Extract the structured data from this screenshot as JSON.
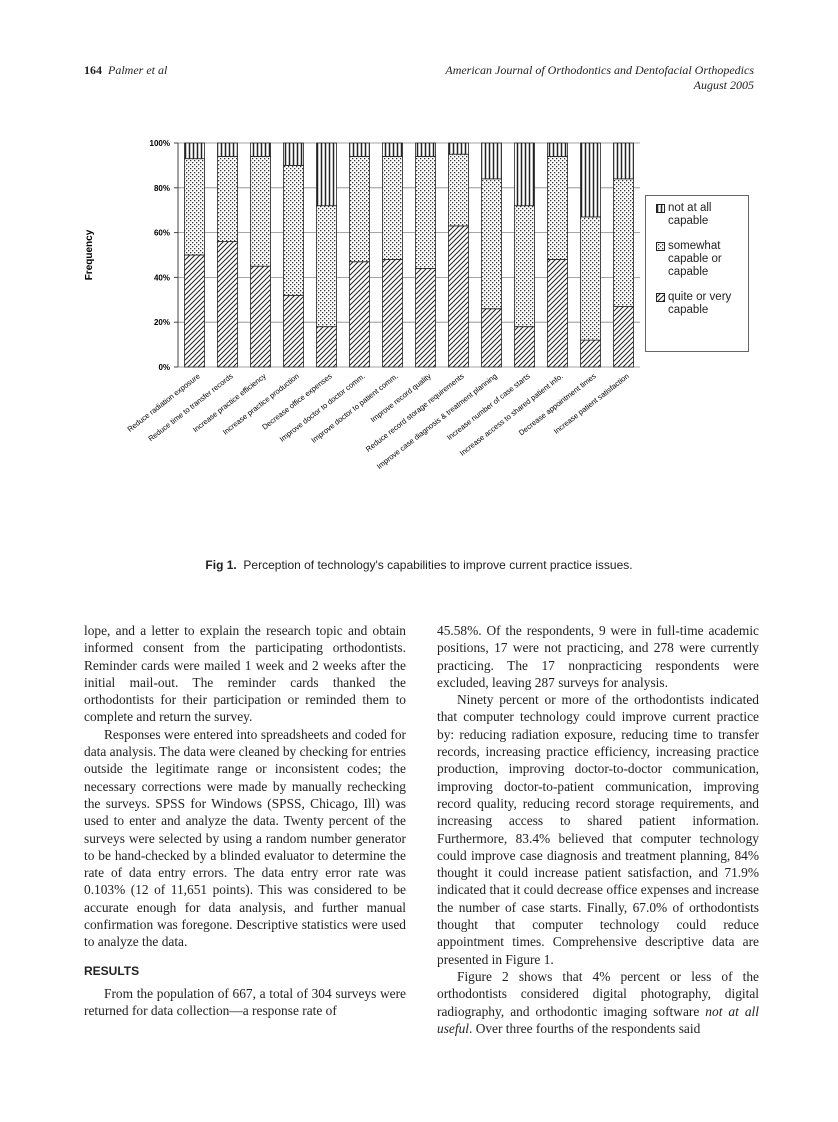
{
  "header": {
    "page_number": "164",
    "authors": "Palmer et al",
    "journal": "American Journal of Orthodontics and Dentofacial Orthopedics",
    "date": "August 2005"
  },
  "chart_data": {
    "type": "stacked-bar",
    "ylabel": "Frequency",
    "categories": [
      "Reduce radiation exposure",
      "Reduce time to transfer records",
      "Increase practice efficiency",
      "Increase practice production",
      "Decrease office expenses",
      "Improve doctor to doctor comm.",
      "Improve doctor to patient comm.",
      "Improve record quality",
      "Reduce record storage requirements",
      "Improve case diagnosis & treatment planning",
      "Increase number of case starts",
      "Increase access to shared patient info.",
      "Decrease appointment times",
      "Increase patient satisfaction"
    ],
    "series": [
      {
        "name": "quite or very capable",
        "values": [
          50,
          56,
          45,
          32,
          18,
          47,
          48,
          44,
          63,
          26,
          18,
          48,
          12,
          27
        ]
      },
      {
        "name": "somewhat capable or capable",
        "values": [
          43,
          38,
          49,
          58,
          54,
          47,
          46,
          50,
          32,
          58,
          54,
          46,
          55,
          57
        ]
      },
      {
        "name": "not at all capable",
        "values": [
          7,
          6,
          6,
          10,
          28,
          6,
          6,
          6,
          5,
          16,
          28,
          6,
          33,
          16
        ]
      }
    ],
    "ylim": [
      0,
      100
    ],
    "yticks": [
      {
        "value": 0,
        "label": "0%"
      },
      {
        "value": 20,
        "label": "20%"
      },
      {
        "value": 40,
        "label": "40%"
      },
      {
        "value": 60,
        "label": "60%"
      },
      {
        "value": 80,
        "label": "80%"
      },
      {
        "value": 100,
        "label": "100%"
      }
    ],
    "grid": true,
    "legend": "right"
  },
  "caption": {
    "label": "Fig 1.",
    "text": "Perception of technology's capabilities to improve current practice issues."
  },
  "body": {
    "left": [
      "lope, and a letter to explain the research topic and obtain informed consent from the participating orthodontists. Reminder cards were mailed 1 week and 2 weeks after the initial mail-out. The reminder cards thanked the orthodontists for their participation or reminded them to complete and return the survey.",
      "Responses were entered into spreadsheets and coded for data analysis. The data were cleaned by checking for entries outside the legitimate range or inconsistent codes; the necessary corrections were made by manually rechecking the surveys. SPSS for Windows (SPSS, Chicago, Ill) was used to enter and analyze the data. Twenty percent of the surveys were selected by using a random number generator to be hand-checked by a blinded evaluator to determine the rate of data entry errors. The data entry error rate was 0.103% (12 of 11,651 points). This was considered to be accurate enough for data analysis, and further manual confirmation was foregone. Descriptive statistics were used to analyze the data."
    ],
    "heading": "RESULTS",
    "left_after": "From the population of 667, a total of 304 surveys were returned for data collection—a response rate of",
    "right": [
      "45.58%. Of the respondents, 9 were in full-time academic positions, 17 were not practicing, and 278 were currently practicing. The 17 nonpracticing respondents were excluded, leaving 287 surveys for analysis.",
      "Ninety percent or more of the orthodontists indicated that computer technology could improve current practice by: reducing radiation exposure, reducing time to transfer records, increasing practice efficiency, increasing practice production, improving doctor-to-doctor communication, improving doctor-to-patient communication, improving record quality, reducing record storage requirements, and increasing access to shared patient information. Furthermore, 83.4% believed that computer technology could improve case diagnosis and treatment planning, 84% thought it could increase patient satisfaction, and 71.9% indicated that it could decrease office expenses and increase the number of case starts. Finally, 67.0% of orthodontists thought that computer technology could reduce appointment times. Comprehensive descriptive data are presented in Figure 1."
    ],
    "last": [
      "Figure 2 shows that 4% percent or less of the orthodontists considered digital photography, digital radiography, and orthodontic imaging software ",
      "not at all useful",
      ". Over three fourths of the respondents said"
    ]
  }
}
